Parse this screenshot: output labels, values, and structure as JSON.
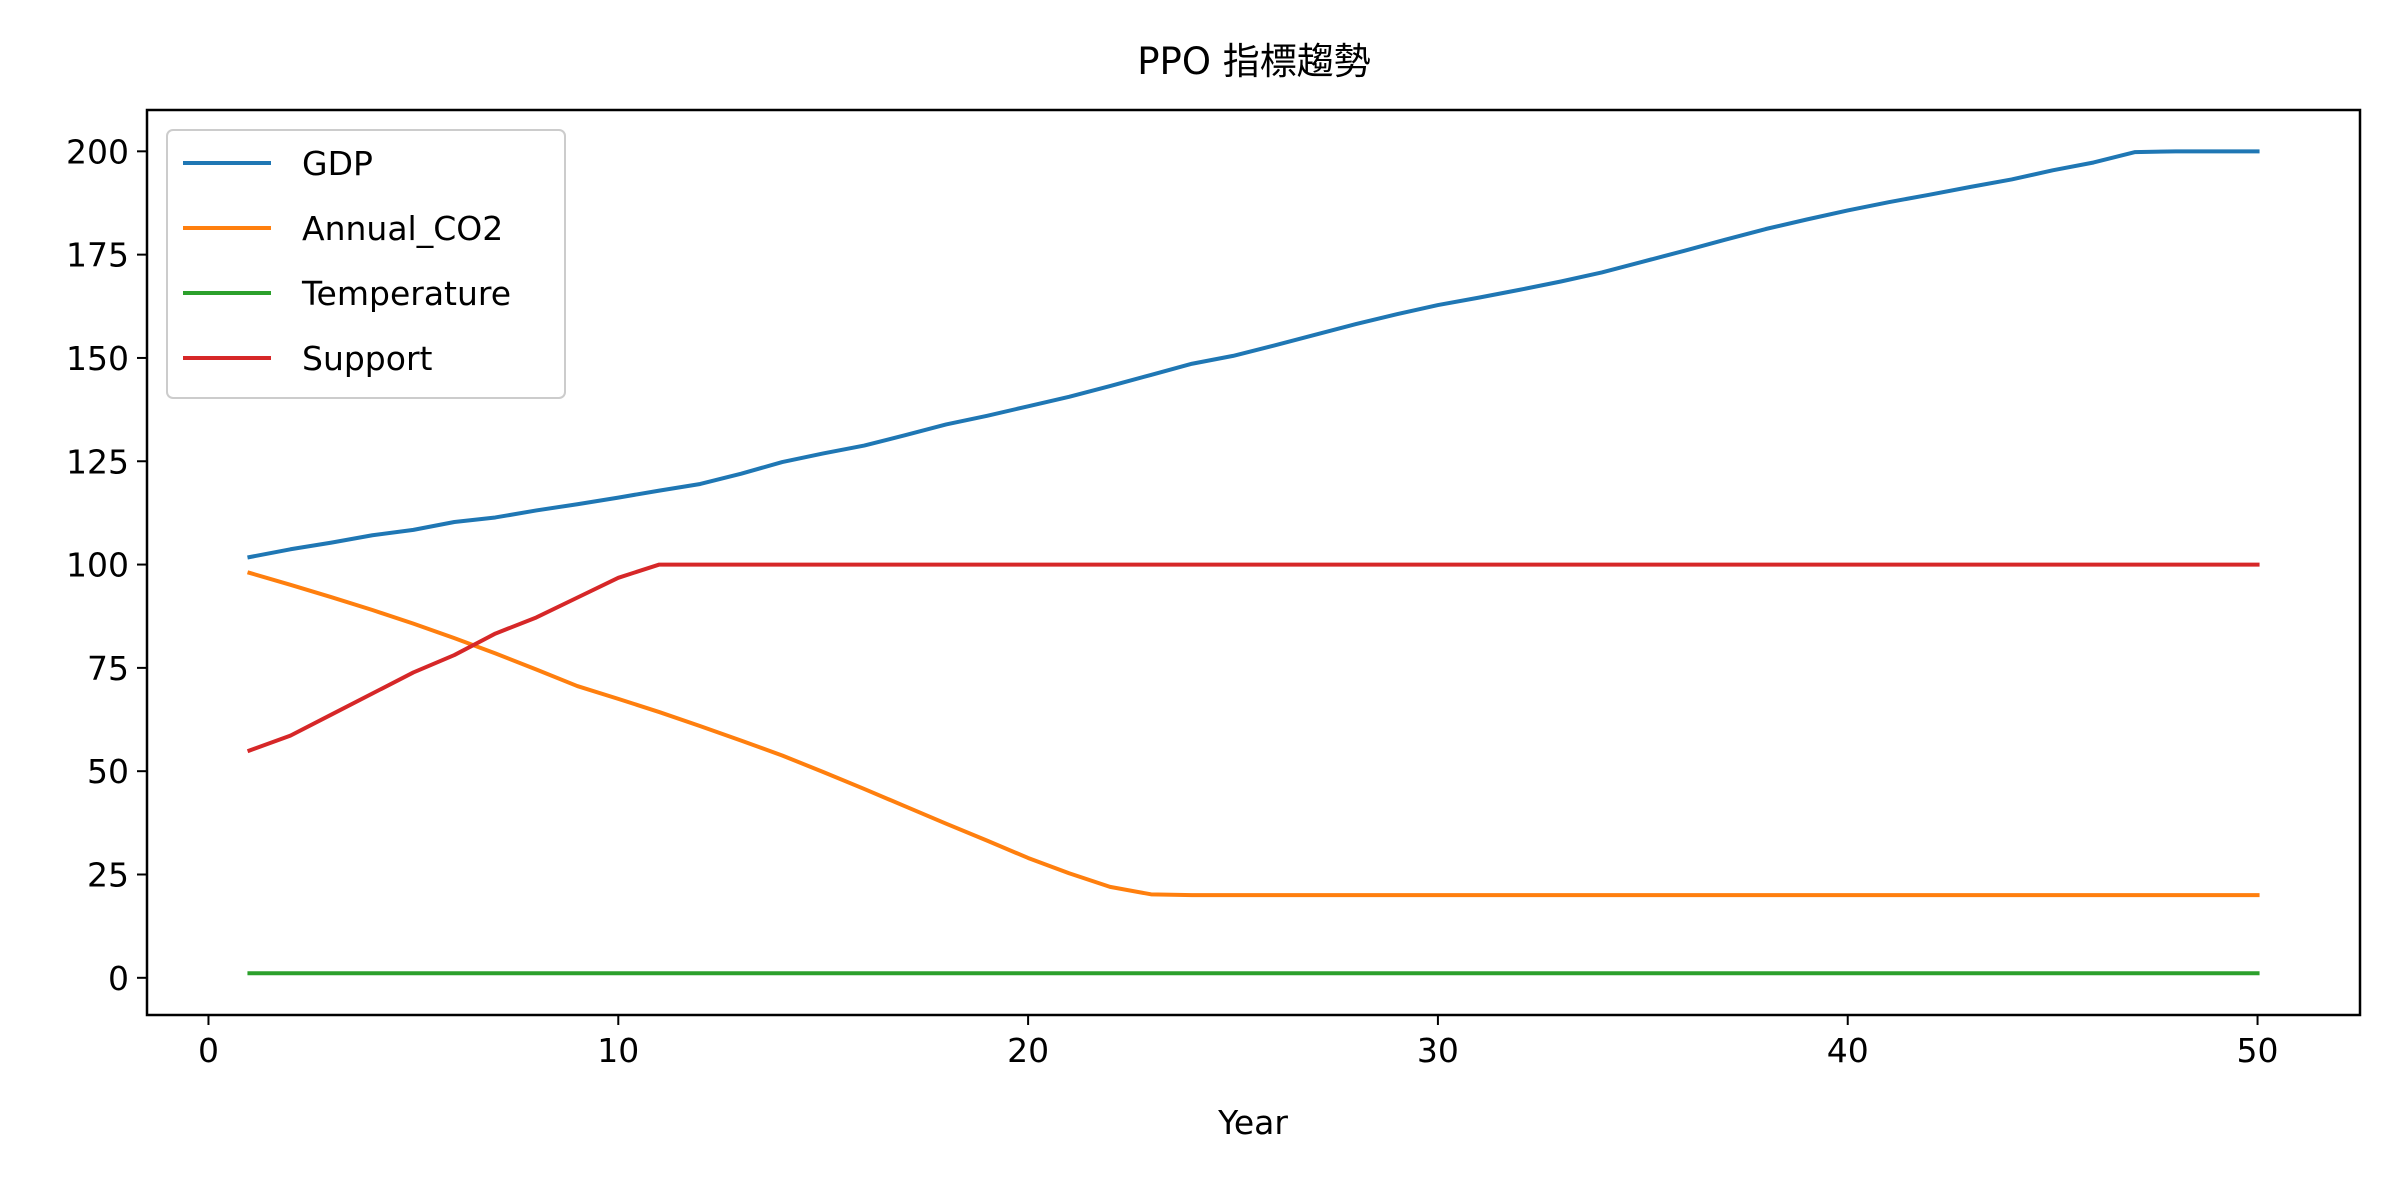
{
  "chart_data": {
    "type": "line",
    "title": "PPO 指標趨勢",
    "xlabel": "Year",
    "ylabel": "",
    "xlim": [
      -1.5,
      52.5
    ],
    "ylim": [
      -9,
      210
    ],
    "xticks": [
      0,
      10,
      20,
      30,
      40,
      50
    ],
    "yticks": [
      0,
      25,
      50,
      75,
      100,
      125,
      150,
      175,
      200
    ],
    "grid": false,
    "legend_position": "upper left",
    "x": [
      1,
      2,
      3,
      4,
      5,
      6,
      7,
      8,
      9,
      10,
      11,
      12,
      13,
      14,
      15,
      16,
      17,
      18,
      19,
      20,
      21,
      22,
      23,
      24,
      25,
      26,
      27,
      28,
      29,
      30,
      31,
      32,
      33,
      34,
      35,
      36,
      37,
      38,
      39,
      40,
      41,
      42,
      43,
      44,
      45,
      46,
      47,
      48,
      49,
      50
    ],
    "series": [
      {
        "name": "GDP",
        "color": "#1f77b4",
        "values": [
          101.8,
          103.7,
          105.3,
          107.1,
          108.4,
          110.3,
          111.4,
          113.1,
          114.6,
          116.2,
          117.9,
          119.5,
          122.0,
          124.8,
          126.9,
          128.8,
          131.3,
          133.9,
          136.0,
          138.3,
          140.6,
          143.2,
          145.9,
          148.6,
          150.5,
          153.0,
          155.6,
          158.2,
          160.6,
          162.8,
          164.6,
          166.5,
          168.5,
          170.7,
          173.3,
          175.9,
          178.6,
          181.2,
          183.5,
          185.7,
          187.7,
          189.5,
          191.4,
          193.2,
          195.4,
          197.3,
          199.8,
          200,
          200,
          200
        ]
      },
      {
        "name": "Annual_CO2",
        "color": "#ff7f0e",
        "values": [
          98.0,
          95.1,
          92.1,
          89.0,
          85.7,
          82.2,
          78.5,
          74.6,
          70.6,
          67.5,
          64.3,
          60.9,
          57.4,
          53.8,
          49.8,
          45.7,
          41.5,
          37.3,
          33.2,
          29.0,
          25.3,
          22.0,
          20.2,
          20,
          20,
          20,
          20,
          20,
          20,
          20,
          20,
          20,
          20,
          20,
          20,
          20,
          20,
          20,
          20,
          20,
          20,
          20,
          20,
          20,
          20,
          20,
          20,
          20,
          20,
          20
        ]
      },
      {
        "name": "Temperature",
        "color": "#2ca02c",
        "values": [
          1.1,
          1.1,
          1.1,
          1.1,
          1.1,
          1.1,
          1.1,
          1.1,
          1.1,
          1.1,
          1.1,
          1.1,
          1.1,
          1.1,
          1.1,
          1.1,
          1.1,
          1.1,
          1.1,
          1.1,
          1.1,
          1.1,
          1.1,
          1.1,
          1.1,
          1.1,
          1.1,
          1.1,
          1.1,
          1.1,
          1.1,
          1.1,
          1.1,
          1.1,
          1.1,
          1.1,
          1.1,
          1.1,
          1.1,
          1.1,
          1.1,
          1.1,
          1.1,
          1.1,
          1.1,
          1.1,
          1.1,
          1.1,
          1.1,
          1.1
        ]
      },
      {
        "name": "Support",
        "color": "#d62728",
        "values": [
          55.0,
          58.6,
          63.7,
          68.8,
          73.9,
          78.1,
          83.3,
          87.2,
          92.0,
          96.8,
          100,
          100,
          100,
          100,
          100,
          100,
          100,
          100,
          100,
          100,
          100,
          100,
          100,
          100,
          100,
          100,
          100,
          100,
          100,
          100,
          100,
          100,
          100,
          100,
          100,
          100,
          100,
          100,
          100,
          100,
          100,
          100,
          100,
          100,
          100,
          100,
          100,
          100,
          100,
          100
        ]
      }
    ]
  }
}
